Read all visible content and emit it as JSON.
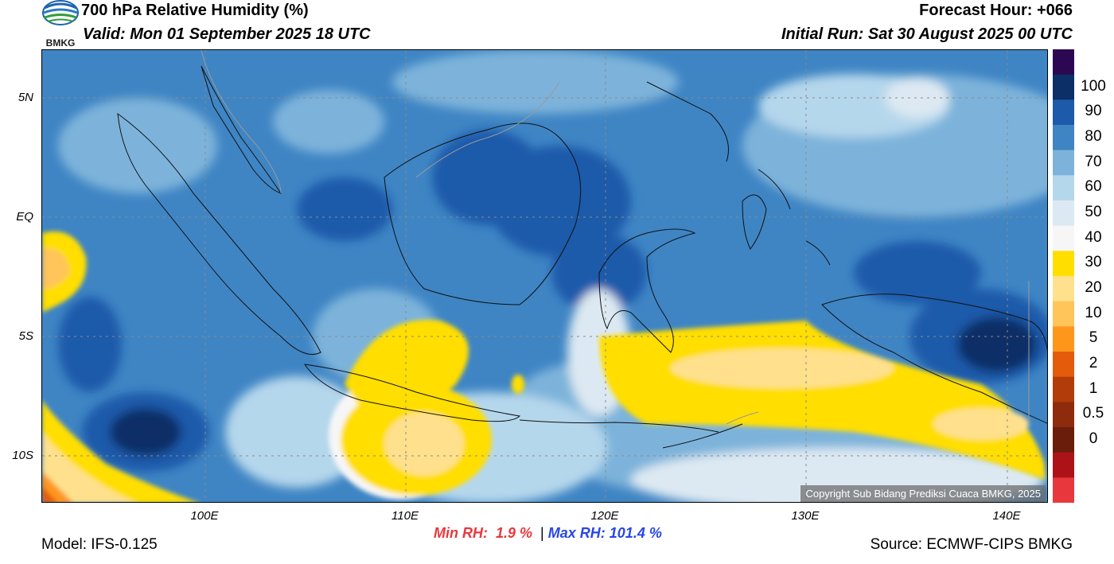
{
  "header": {
    "title": "700 hPa Relative Humidity (%)",
    "valid": "Valid: Mon 01 September 2025 18 UTC",
    "forecast_hour": "Forecast Hour: +066",
    "initial_run": "Initial Run: Sat 30 August 2025 00 UTC",
    "logo_text": "BMKG"
  },
  "axes": {
    "lat_labels": [
      "5N",
      "EQ",
      "5S",
      "10S"
    ],
    "lon_labels": [
      "100E",
      "110E",
      "120E",
      "130E",
      "140E"
    ]
  },
  "colorbar": {
    "labels": [
      "100",
      "90",
      "80",
      "70",
      "60",
      "50",
      "40",
      "30",
      "20",
      "10",
      "5",
      "2",
      "1",
      "0.5",
      "0"
    ],
    "colors": [
      "#2d0852",
      "#0b2f66",
      "#1d5aaa",
      "#3f85c4",
      "#7db3da",
      "#b5d7ec",
      "#dde9f2",
      "#f6f6f6",
      "#ffde00",
      "#ffe08c",
      "#ffc45a",
      "#ff961c",
      "#e55b0c",
      "#b23c0a",
      "#8e2b0c",
      "#6a1d0b",
      "#ad1218",
      "#e8383d"
    ]
  },
  "stats": {
    "min_label": "Min RH:",
    "min_value": "1.9 %",
    "sep": "|",
    "max_label": "Max RH:",
    "max_value": "101.4 %"
  },
  "footer": {
    "model": "Model: IFS-0.125",
    "source": "Source: ECMWF-CIPS BMKG",
    "copyright": "Copyright Sub Bidang Prediksi Cuaca BMKG, 2025"
  }
}
